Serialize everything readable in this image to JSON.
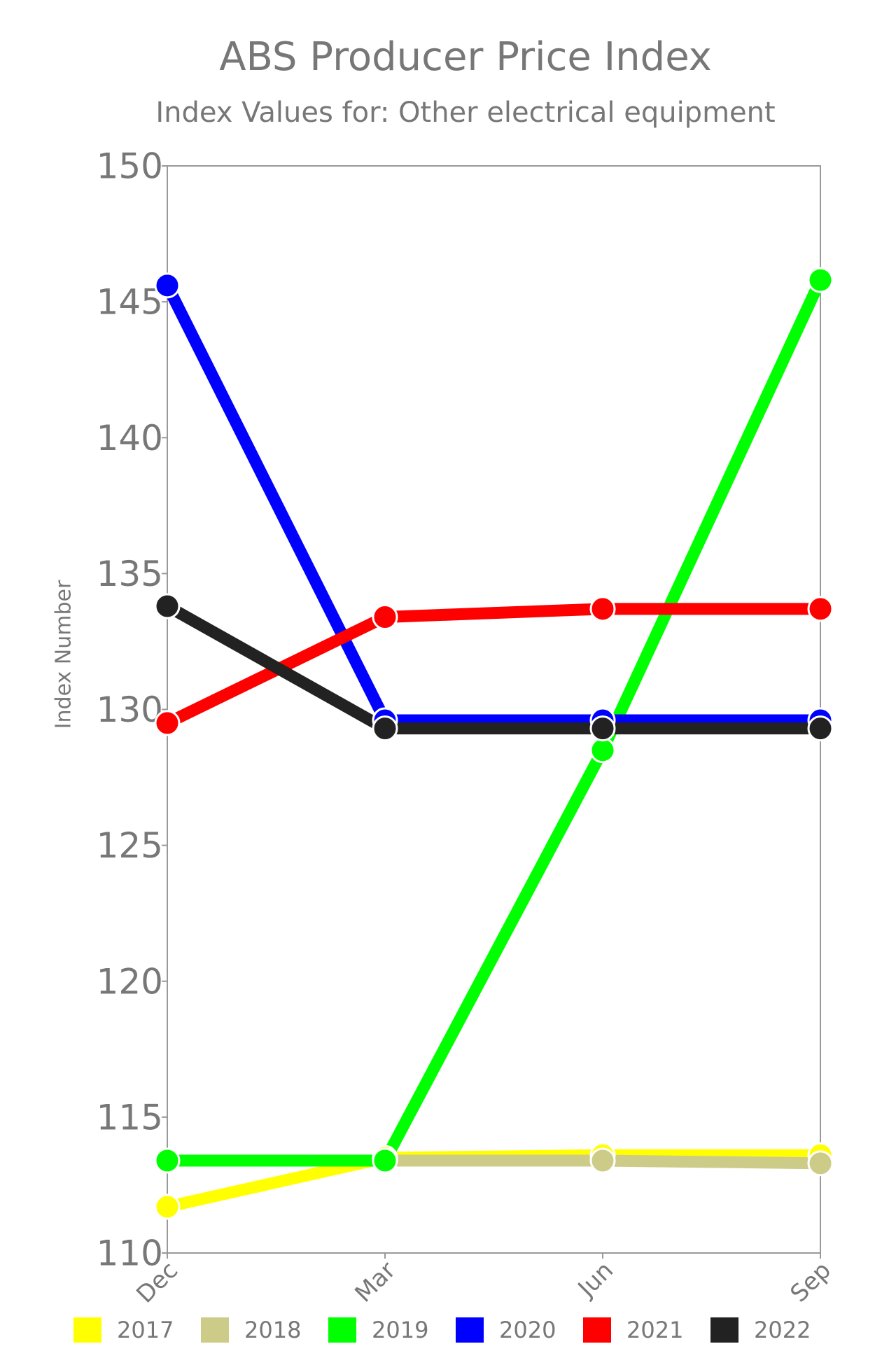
{
  "chart_data": {
    "type": "line",
    "title": "ABS Producer Price Index",
    "subtitle": "Index Values for: Other electrical equipment",
    "y_label": "Index Number",
    "categories": [
      "Dec",
      "Mar",
      "Jun",
      "Sep"
    ],
    "series": [
      {
        "name": "2017",
        "color": "#ffff00",
        "values": [
          111.7,
          113.5,
          113.6,
          113.6
        ]
      },
      {
        "name": "2018",
        "color": "#cccc88",
        "values": [
          null,
          113.4,
          113.4,
          113.3
        ]
      },
      {
        "name": "2019",
        "color": "#00ff00",
        "values": [
          113.4,
          113.4,
          128.5,
          145.8
        ]
      },
      {
        "name": "2020",
        "color": "#0000ff",
        "values": [
          145.6,
          129.6,
          129.6,
          129.6
        ]
      },
      {
        "name": "2021",
        "color": "#ff0000",
        "values": [
          129.5,
          133.4,
          133.7,
          133.7
        ]
      },
      {
        "name": "2022",
        "color": "#222222",
        "values": [
          133.8,
          129.3,
          129.3,
          129.3
        ]
      }
    ],
    "ylim": [
      110,
      150
    ],
    "yticks": [
      110,
      115,
      120,
      125,
      130,
      135,
      140,
      145,
      150
    ]
  }
}
